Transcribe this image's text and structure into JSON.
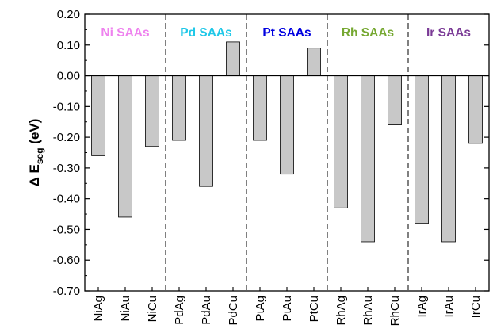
{
  "chart_data": {
    "type": "bar",
    "ylabel": {
      "prefix": "Δ E",
      "subscript": "seg",
      "suffix": " (eV)"
    },
    "ylim": [
      -0.7,
      0.2
    ],
    "yticks": [
      0.2,
      0.1,
      0.0,
      -0.1,
      -0.2,
      -0.3,
      -0.4,
      -0.5,
      -0.6,
      -0.7
    ],
    "ytick_labels": [
      "0.20",
      "0.10",
      "0.00",
      "-0.10",
      "-0.20",
      "-0.30",
      "-0.40",
      "-0.50",
      "-0.60",
      "-0.70"
    ],
    "categories": [
      "NiAg",
      "NiAu",
      "NiCu",
      "PdAg",
      "PdAu",
      "PdCu",
      "PtAg",
      "PtAu",
      "PtCu",
      "RhAg",
      "RhAu",
      "RhCu",
      "IrAg",
      "IrAu",
      "IrCu"
    ],
    "values": [
      -0.26,
      -0.46,
      -0.23,
      -0.21,
      -0.36,
      0.11,
      -0.21,
      -0.32,
      0.09,
      -0.43,
      -0.54,
      -0.16,
      -0.48,
      -0.54,
      -0.22
    ],
    "bar_color": "#c8c8c8",
    "groups": [
      {
        "label": "Ni SAAs",
        "color": "#ee82ee"
      },
      {
        "label": "Pd SAAs",
        "color": "#20c8e8"
      },
      {
        "label": "Pt SAAs",
        "color": "#0000e0"
      },
      {
        "label": "Rh SAAs",
        "color": "#76a832"
      },
      {
        "label": "Ir SAAs",
        "color": "#7a3a96"
      }
    ],
    "grid": false,
    "zero_line": true
  }
}
